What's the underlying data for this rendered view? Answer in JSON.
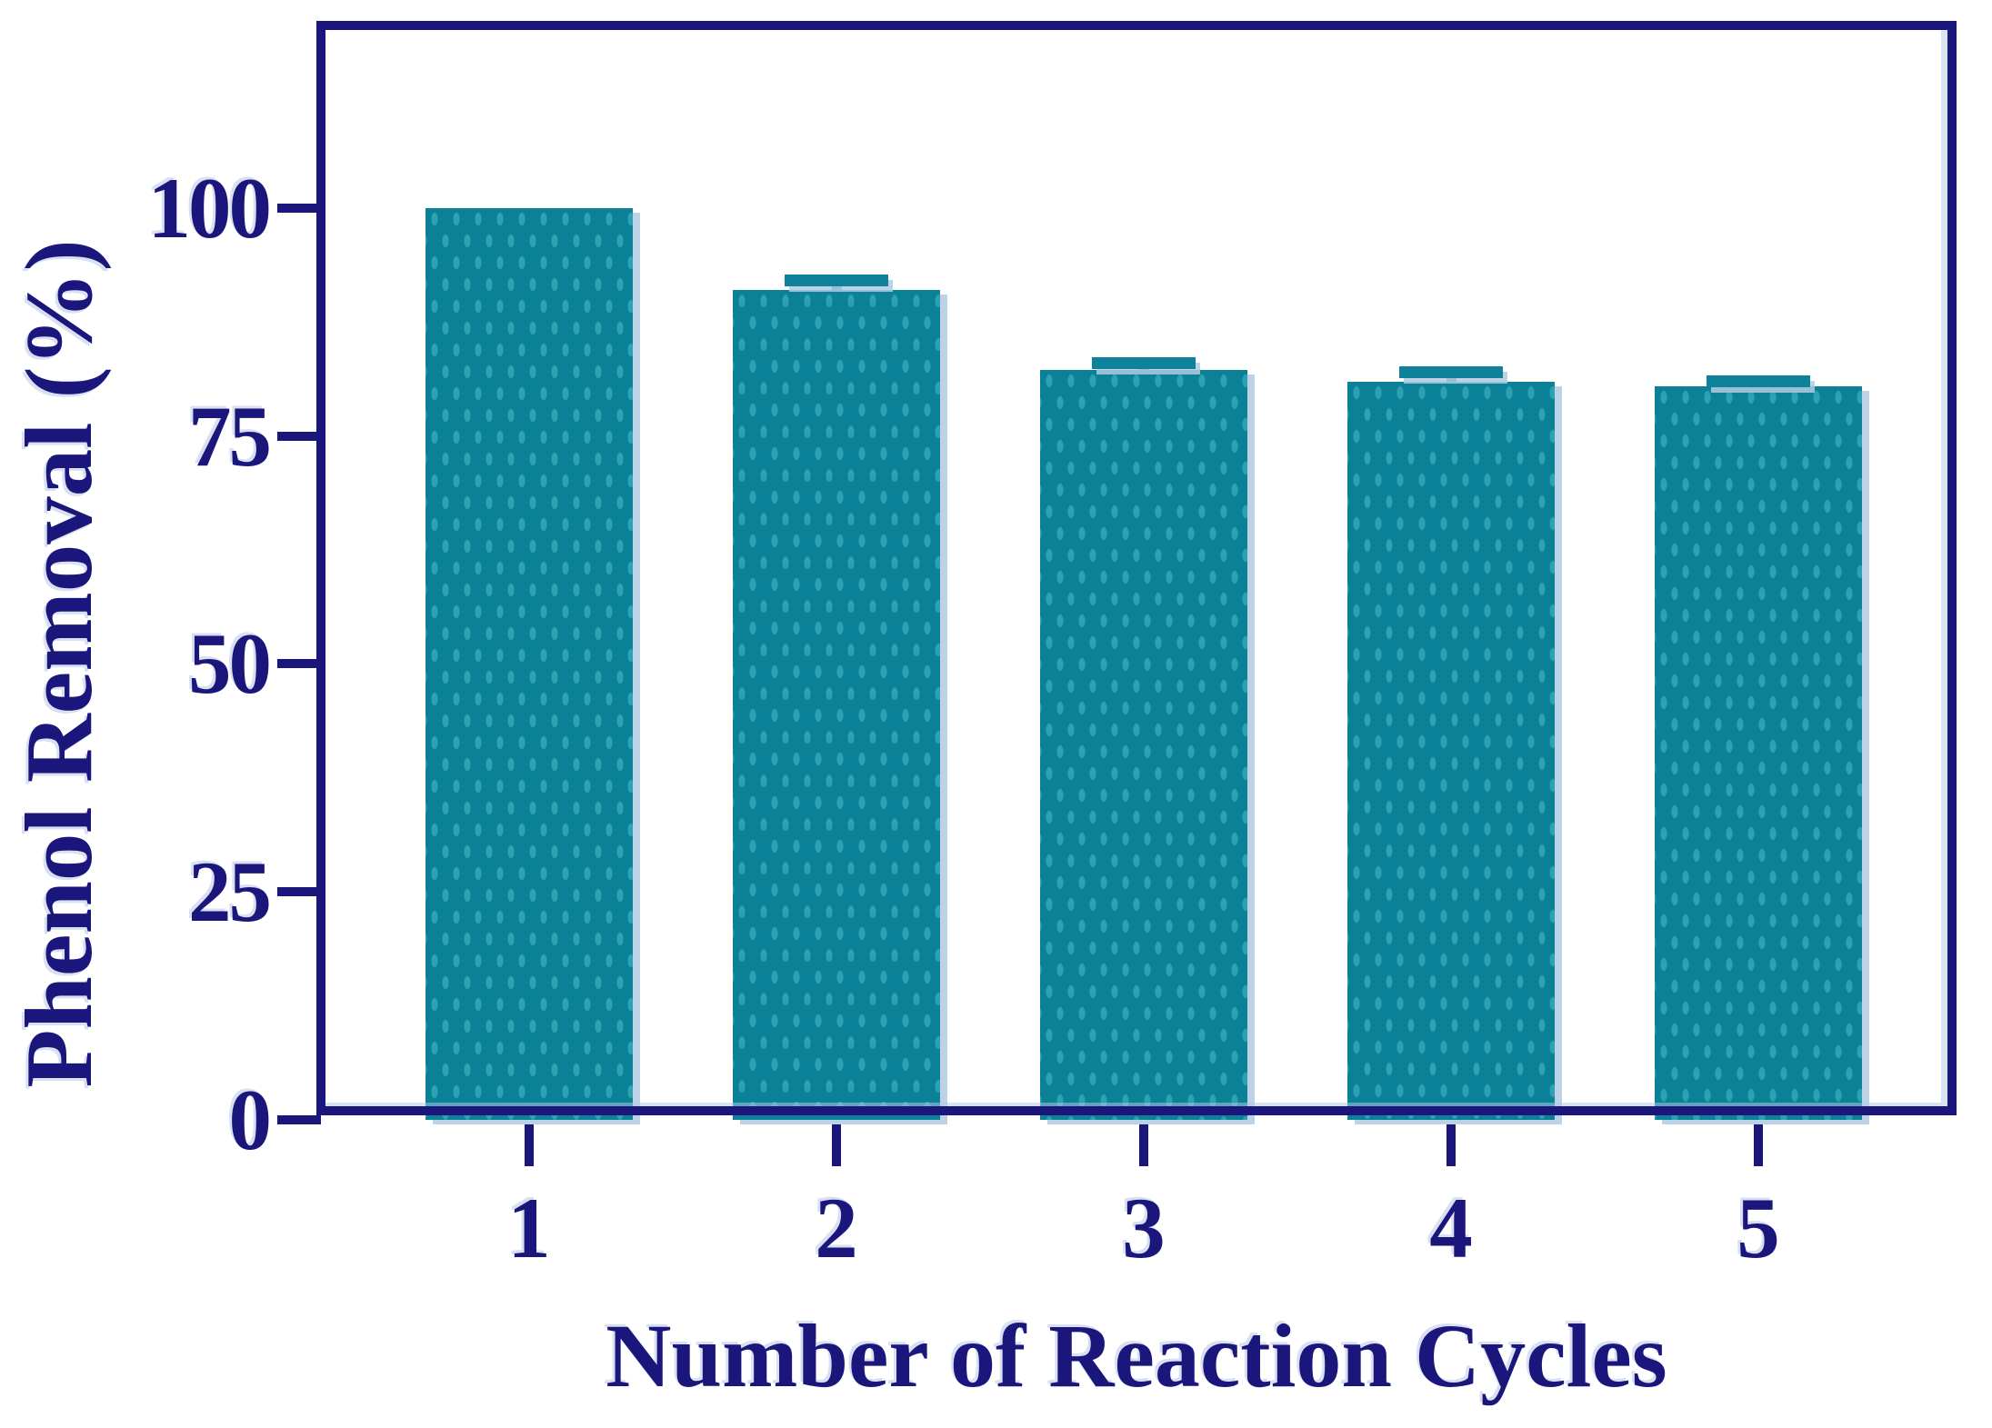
{
  "chart_data": {
    "type": "bar",
    "title": "",
    "xlabel": "Number of Reaction Cycles",
    "ylabel": "Phenol Removal (%)",
    "categories": [
      "1",
      "2",
      "3",
      "4",
      "5"
    ],
    "values": [
      100,
      91,
      82.2,
      80.9,
      80.4
    ],
    "error_plus": [
      0,
      1.0,
      0.8,
      1.1,
      0.6
    ],
    "yticks": [
      0,
      25,
      50,
      75,
      100
    ],
    "ylim": [
      0,
      120
    ],
    "grid": false,
    "legend": "none",
    "colors": {
      "bar_fill": "#0a8196",
      "bar_dot": "#2fa0b2",
      "axis": "#1a167b",
      "shadow": "#b0cbe3",
      "background": "#ffffff"
    }
  }
}
